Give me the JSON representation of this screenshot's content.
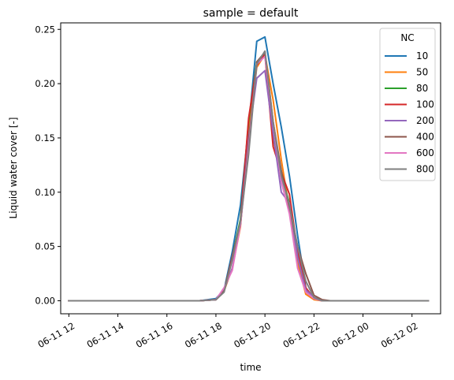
{
  "chart_data": {
    "type": "line",
    "title": "sample = default",
    "xlabel": "time",
    "ylabel": "Liquid water cover [-]",
    "x_tick_labels": [
      "06-11 12",
      "06-11 14",
      "06-11 16",
      "06-11 18",
      "06-11 20",
      "06-11 22",
      "06-12 00",
      "06-12 02"
    ],
    "x_ticks": [
      "2023-06-11 12:00",
      "2023-06-11 14:00",
      "2023-06-11 16:00",
      "2023-06-11 18:00",
      "2023-06-11 20:00",
      "2023-06-11 22:00",
      "2023-06-12 00:00",
      "2023-06-12 02:00"
    ],
    "y_ticks": [
      0.0,
      0.05,
      0.1,
      0.15,
      0.2,
      0.25
    ],
    "y_tick_labels": [
      "0.00",
      "0.05",
      "0.10",
      "0.15",
      "0.20",
      "0.25"
    ],
    "xlim": [
      "2023-06-11 11:40",
      "2023-06-12 03:10"
    ],
    "ylim": [
      -0.012,
      0.256
    ],
    "grid": false,
    "legend_title": "NC",
    "legend_position": "top-right",
    "x": [
      "2023-06-11 12:00",
      "2023-06-11 12:40",
      "2023-06-11 13:20",
      "2023-06-11 14:00",
      "2023-06-11 14:40",
      "2023-06-11 15:20",
      "2023-06-11 16:00",
      "2023-06-11 16:40",
      "2023-06-11 17:20",
      "2023-06-11 18:00",
      "2023-06-11 18:20",
      "2023-06-11 18:40",
      "2023-06-11 19:00",
      "2023-06-11 19:20",
      "2023-06-11 19:40",
      "2023-06-11 20:00",
      "2023-06-11 20:20",
      "2023-06-11 20:40",
      "2023-06-11 21:00",
      "2023-06-11 21:20",
      "2023-06-11 21:40",
      "2023-06-11 22:00",
      "2023-06-11 22:20",
      "2023-06-11 22:40",
      "2023-06-11 23:00",
      "2023-06-11 23:20",
      "2023-06-11 23:40",
      "2023-06-12 00:00",
      "2023-06-12 00:20",
      "2023-06-12 00:40",
      "2023-06-12 01:00",
      "2023-06-12 01:20",
      "2023-06-12 01:40",
      "2023-06-12 02:00",
      "2023-06-12 02:20",
      "2023-06-12 02:40"
    ],
    "series": [
      {
        "name": "10",
        "color": "#1f77b4",
        "values": [
          0,
          0,
          0,
          0,
          0,
          0,
          0,
          0,
          0,
          0.002,
          0.01,
          0.045,
          0.088,
          0.16,
          0.239,
          0.243,
          0.2,
          0.16,
          0.115,
          0.06,
          0.012,
          0.002,
          0.0,
          0,
          0,
          0,
          0,
          0,
          0,
          0,
          0,
          0,
          0,
          0,
          0,
          0
        ]
      },
      {
        "name": "50",
        "color": "#ff7f0e",
        "values": [
          0,
          0,
          0,
          0,
          0,
          0,
          0,
          0,
          0,
          0.001,
          0.009,
          0.03,
          0.068,
          0.155,
          0.215,
          0.227,
          0.185,
          0.13,
          0.083,
          0.035,
          0.006,
          0.001,
          0.0,
          0,
          0,
          0,
          0,
          0,
          0,
          0,
          0,
          0,
          0,
          0,
          0,
          0
        ]
      },
      {
        "name": "80",
        "color": "#2ca02c",
        "values": [
          0,
          0,
          0,
          0,
          0,
          0,
          0,
          0,
          0,
          0.001,
          0.009,
          0.04,
          0.075,
          0.165,
          0.22,
          0.228,
          0.15,
          0.115,
          0.09,
          0.04,
          0.01,
          0.002,
          0.0,
          0,
          0,
          0,
          0,
          0,
          0,
          0,
          0,
          0,
          0,
          0,
          0,
          0
        ]
      },
      {
        "name": "100",
        "color": "#d62728",
        "values": [
          0,
          0,
          0,
          0,
          0,
          0,
          0,
          0,
          0,
          0.001,
          0.009,
          0.04,
          0.072,
          0.168,
          0.217,
          0.227,
          0.142,
          0.118,
          0.098,
          0.045,
          0.012,
          0.002,
          0.0,
          0,
          0,
          0,
          0,
          0,
          0,
          0,
          0,
          0,
          0,
          0,
          0,
          0
        ]
      },
      {
        "name": "200",
        "color": "#9467bd",
        "values": [
          0,
          0,
          0,
          0,
          0,
          0,
          0,
          0,
          0,
          0.001,
          0.01,
          0.03,
          0.07,
          0.15,
          0.205,
          0.212,
          0.155,
          0.1,
          0.09,
          0.04,
          0.01,
          0.003,
          0.0,
          0,
          0,
          0,
          0,
          0,
          0,
          0,
          0,
          0,
          0,
          0,
          0,
          0
        ]
      },
      {
        "name": "400",
        "color": "#8c564b",
        "values": [
          0,
          0,
          0,
          0,
          0,
          0,
          0,
          0,
          0,
          0.001,
          0.009,
          0.038,
          0.07,
          0.145,
          0.22,
          0.229,
          0.165,
          0.12,
          0.085,
          0.05,
          0.025,
          0.005,
          0.001,
          0,
          0,
          0,
          0,
          0,
          0,
          0,
          0,
          0,
          0,
          0,
          0,
          0
        ]
      },
      {
        "name": "600",
        "color": "#e377c2",
        "values": [
          0,
          0,
          0,
          0,
          0,
          0,
          0,
          0,
          0,
          0.001,
          0.012,
          0.028,
          0.07,
          0.14,
          0.218,
          0.225,
          0.165,
          0.11,
          0.08,
          0.03,
          0.008,
          0.002,
          0.0,
          0,
          0,
          0,
          0,
          0,
          0,
          0,
          0,
          0,
          0,
          0,
          0,
          0
        ]
      },
      {
        "name": "800",
        "color": "#7f7f7f",
        "values": [
          0,
          0,
          0,
          0,
          0,
          0,
          0,
          0,
          0,
          0.001,
          0.008,
          0.038,
          0.073,
          0.135,
          0.218,
          0.23,
          0.165,
          0.115,
          0.088,
          0.05,
          0.018,
          0.003,
          0.0,
          0,
          0,
          0,
          0,
          0,
          0,
          0,
          0,
          0,
          0,
          0,
          0,
          0
        ]
      }
    ]
  }
}
